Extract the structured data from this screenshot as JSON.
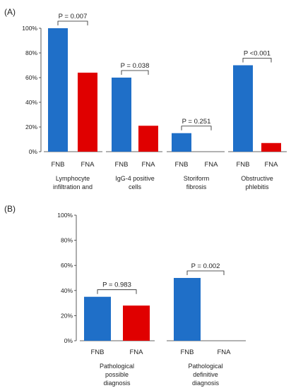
{
  "chart_data": [
    {
      "type": "bar",
      "panel_label": "(A)",
      "bar_labels": [
        "FNB",
        "FNA"
      ],
      "y_ticks": [
        "0%",
        "20%",
        "40%",
        "60%",
        "80%",
        "100%"
      ],
      "ylim": [
        0,
        100
      ],
      "colors": {
        "FNB": "#1f6fc8",
        "FNA": "#e00000"
      },
      "groups": [
        {
          "lines": [
            "Lymphocyte",
            "infiltration and"
          ],
          "values": [
            100,
            64
          ],
          "p": "P = 0.007"
        },
        {
          "lines": [
            "IgG-4 positive",
            "cells"
          ],
          "values": [
            60,
            21
          ],
          "p": "P = 0.038"
        },
        {
          "lines": [
            "Storiform",
            "fibrosis"
          ],
          "values": [
            15,
            0
          ],
          "p": "P = 0.251"
        },
        {
          "lines": [
            "Obstructive",
            "phlebitis"
          ],
          "values": [
            70,
            7
          ],
          "p": "P <0.001"
        }
      ]
    },
    {
      "type": "bar",
      "panel_label": "(B)",
      "bar_labels": [
        "FNB",
        "FNA"
      ],
      "y_ticks": [
        "0%",
        "20%",
        "40%",
        "60%",
        "80%",
        "100%"
      ],
      "ylim": [
        0,
        100
      ],
      "colors": {
        "FNB": "#1f6fc8",
        "FNA": "#e00000"
      },
      "groups": [
        {
          "lines": [
            "Pathological",
            "possible",
            "diagnosis"
          ],
          "values": [
            35,
            28
          ],
          "p": "P = 0.983"
        },
        {
          "lines": [
            "Pathological",
            "definitive",
            "diagnosis"
          ],
          "values": [
            50,
            0
          ],
          "p": "P = 0.002"
        }
      ]
    }
  ]
}
